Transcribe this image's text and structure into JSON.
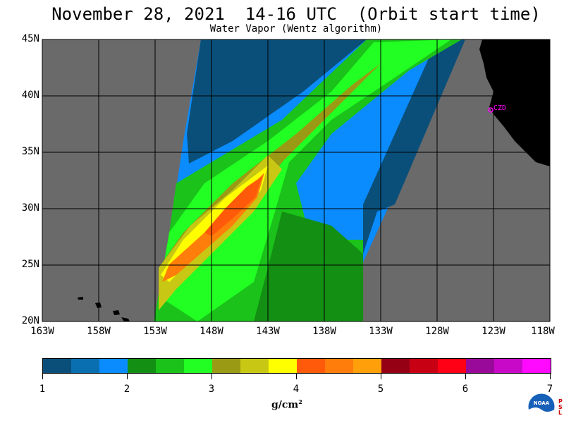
{
  "header": {
    "title": "November 28, 2021  14-16 UTC  (Orbit start time)",
    "subtitle": "Water Vapor (Wentz algorithm)"
  },
  "map": {
    "lat_labels": [
      "45N",
      "40N",
      "35N",
      "30N",
      "25N",
      "20N"
    ],
    "lon_labels": [
      "163W",
      "158W",
      "153W",
      "148W",
      "143W",
      "138W",
      "133W",
      "128W",
      "123W",
      "118W"
    ],
    "station_label": "CZD",
    "colors": {
      "nodata": "#6a6a6a",
      "land": "#000000",
      "gridline": "#000000",
      "station": "#ff00ff"
    }
  },
  "colorbar": {
    "labels": [
      "1",
      "2",
      "3",
      "4",
      "5",
      "6",
      "7"
    ],
    "units": "g/cm",
    "units_sup": "2",
    "colors": [
      "#0a4f7a",
      "#0a6fb0",
      "#0a8cff",
      "#138f13",
      "#1ac21a",
      "#22ff22",
      "#9a9a14",
      "#c8c814",
      "#ffff00",
      "#ff5a0a",
      "#ff7d0a",
      "#ff9f0a",
      "#960014",
      "#c80014",
      "#ff0014",
      "#9a0a9a",
      "#c80ac8",
      "#ff0aff"
    ]
  },
  "branding": {
    "logo_text": "NOAA",
    "psl_letters": [
      "P",
      "S",
      "L"
    ]
  }
}
